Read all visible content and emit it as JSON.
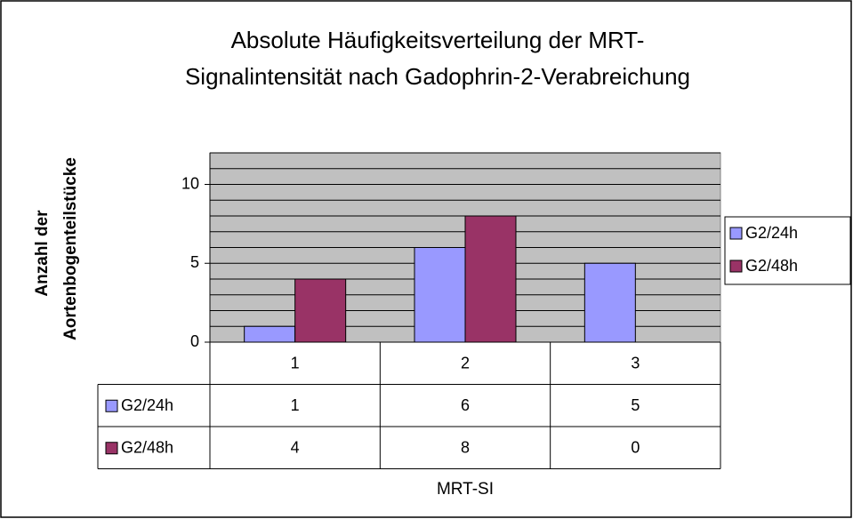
{
  "chart_data": {
    "type": "bar",
    "title": [
      "Absolute Häufigkeitsverteilung der MRT-",
      "Signalintensität nach Gadophrin-2-Verabreichung"
    ],
    "ylabel": [
      "Anzahl der",
      "Aortenbogenteilstücke"
    ],
    "xlabel": "MRT-SI",
    "categories": [
      "1",
      "2",
      "3"
    ],
    "series": [
      {
        "name": "G2/24h",
        "color": "#9999ff",
        "values": [
          1,
          6,
          5
        ]
      },
      {
        "name": "G2/48h",
        "color": "#993366",
        "values": [
          4,
          8,
          0
        ]
      }
    ],
    "ylim": [
      0,
      12
    ],
    "yticks": [
      0,
      5,
      10
    ],
    "minor_yticks": [
      1,
      2,
      3,
      4,
      5,
      6,
      7,
      8,
      9,
      10,
      11,
      12
    ],
    "grid": true,
    "legend": "right",
    "data_table": true
  }
}
